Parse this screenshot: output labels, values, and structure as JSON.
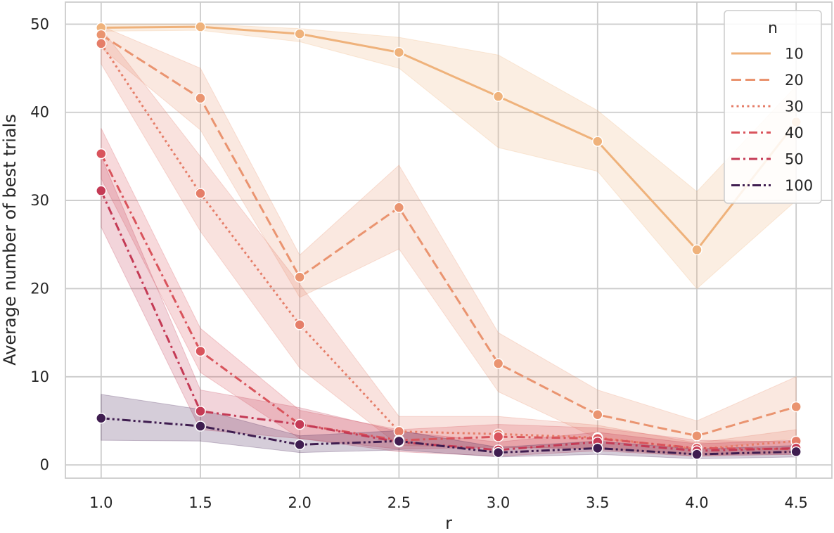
{
  "chart_data": {
    "type": "line",
    "title": "",
    "xlabel": "r",
    "ylabel": "Average number of best trials",
    "x": [
      1.0,
      1.5,
      2.0,
      2.5,
      3.0,
      3.5,
      4.0,
      4.5
    ],
    "x_tick_labels": [
      "1.0",
      "1.5",
      "2.0",
      "2.5",
      "3.0",
      "3.5",
      "4.0",
      "4.5"
    ],
    "xlim": [
      0.82,
      4.68
    ],
    "ylim": [
      -1.5,
      52.5
    ],
    "y_ticks": [
      0,
      10,
      20,
      30,
      40,
      50
    ],
    "y_tick_labels": [
      "0",
      "10",
      "20",
      "30",
      "40",
      "50"
    ],
    "grid": true,
    "legend": {
      "title": "n",
      "placement": "top-right"
    },
    "series": [
      {
        "name": "10",
        "color": "#efb27b",
        "dash": "solid",
        "values": [
          49.6,
          49.7,
          48.9,
          46.8,
          41.8,
          36.7,
          24.4,
          38.9
        ],
        "ci_low": [
          49.2,
          49.3,
          48.0,
          45.0,
          36.0,
          33.3,
          20.0,
          30.0
        ],
        "ci_high": [
          50.0,
          50.0,
          49.5,
          48.5,
          46.5,
          40.2,
          31.0,
          43.0
        ]
      },
      {
        "name": "20",
        "color": "#ea9470",
        "dash": "dashed",
        "values": [
          48.8,
          41.6,
          21.3,
          29.2,
          11.5,
          5.7,
          3.3,
          6.6
        ],
        "ci_low": [
          47.3,
          38.0,
          19.0,
          24.5,
          8.3,
          3.0,
          1.7,
          3.0
        ],
        "ci_high": [
          49.8,
          45.0,
          23.8,
          34.0,
          15.0,
          8.5,
          5.0,
          10.0
        ]
      },
      {
        "name": "30",
        "color": "#e57d68",
        "dash": "dotted",
        "values": [
          47.8,
          30.8,
          15.9,
          3.8,
          3.5,
          3.1,
          1.8,
          2.7
        ],
        "ci_low": [
          45.5,
          26.5,
          11.0,
          2.2,
          2.0,
          1.8,
          1.0,
          1.5
        ],
        "ci_high": [
          49.5,
          35.0,
          20.5,
          5.5,
          5.5,
          4.5,
          2.5,
          4.0
        ]
      },
      {
        "name": "40",
        "color": "#d9545c",
        "dash": "dashdot",
        "values": [
          35.3,
          12.9,
          4.6,
          2.8,
          3.2,
          3.0,
          1.9,
          1.8
        ],
        "ci_low": [
          32.5,
          10.5,
          3.0,
          1.8,
          2.0,
          1.9,
          1.2,
          1.2
        ],
        "ci_high": [
          38.2,
          15.5,
          6.2,
          4.0,
          4.6,
          4.2,
          2.8,
          2.6
        ]
      },
      {
        "name": "50",
        "color": "#c43a55",
        "dash": "dashdot",
        "values": [
          31.1,
          6.1,
          4.6,
          2.6,
          1.7,
          2.6,
          1.6,
          1.9
        ],
        "ci_low": [
          27.0,
          4.0,
          3.0,
          1.5,
          1.0,
          1.6,
          1.0,
          1.2
        ],
        "ci_high": [
          35.0,
          8.5,
          6.5,
          3.8,
          2.6,
          3.7,
          2.4,
          2.8
        ]
      },
      {
        "name": "100",
        "color": "#3f1d50",
        "dash": "dashdotdot",
        "values": [
          5.3,
          4.4,
          2.3,
          2.7,
          1.4,
          1.9,
          1.2,
          1.5
        ],
        "ci_low": [
          2.8,
          2.7,
          1.4,
          1.7,
          0.9,
          1.2,
          0.7,
          0.9
        ],
        "ci_high": [
          8.0,
          6.3,
          3.3,
          3.9,
          2.0,
          2.7,
          1.8,
          2.2
        ]
      }
    ]
  }
}
